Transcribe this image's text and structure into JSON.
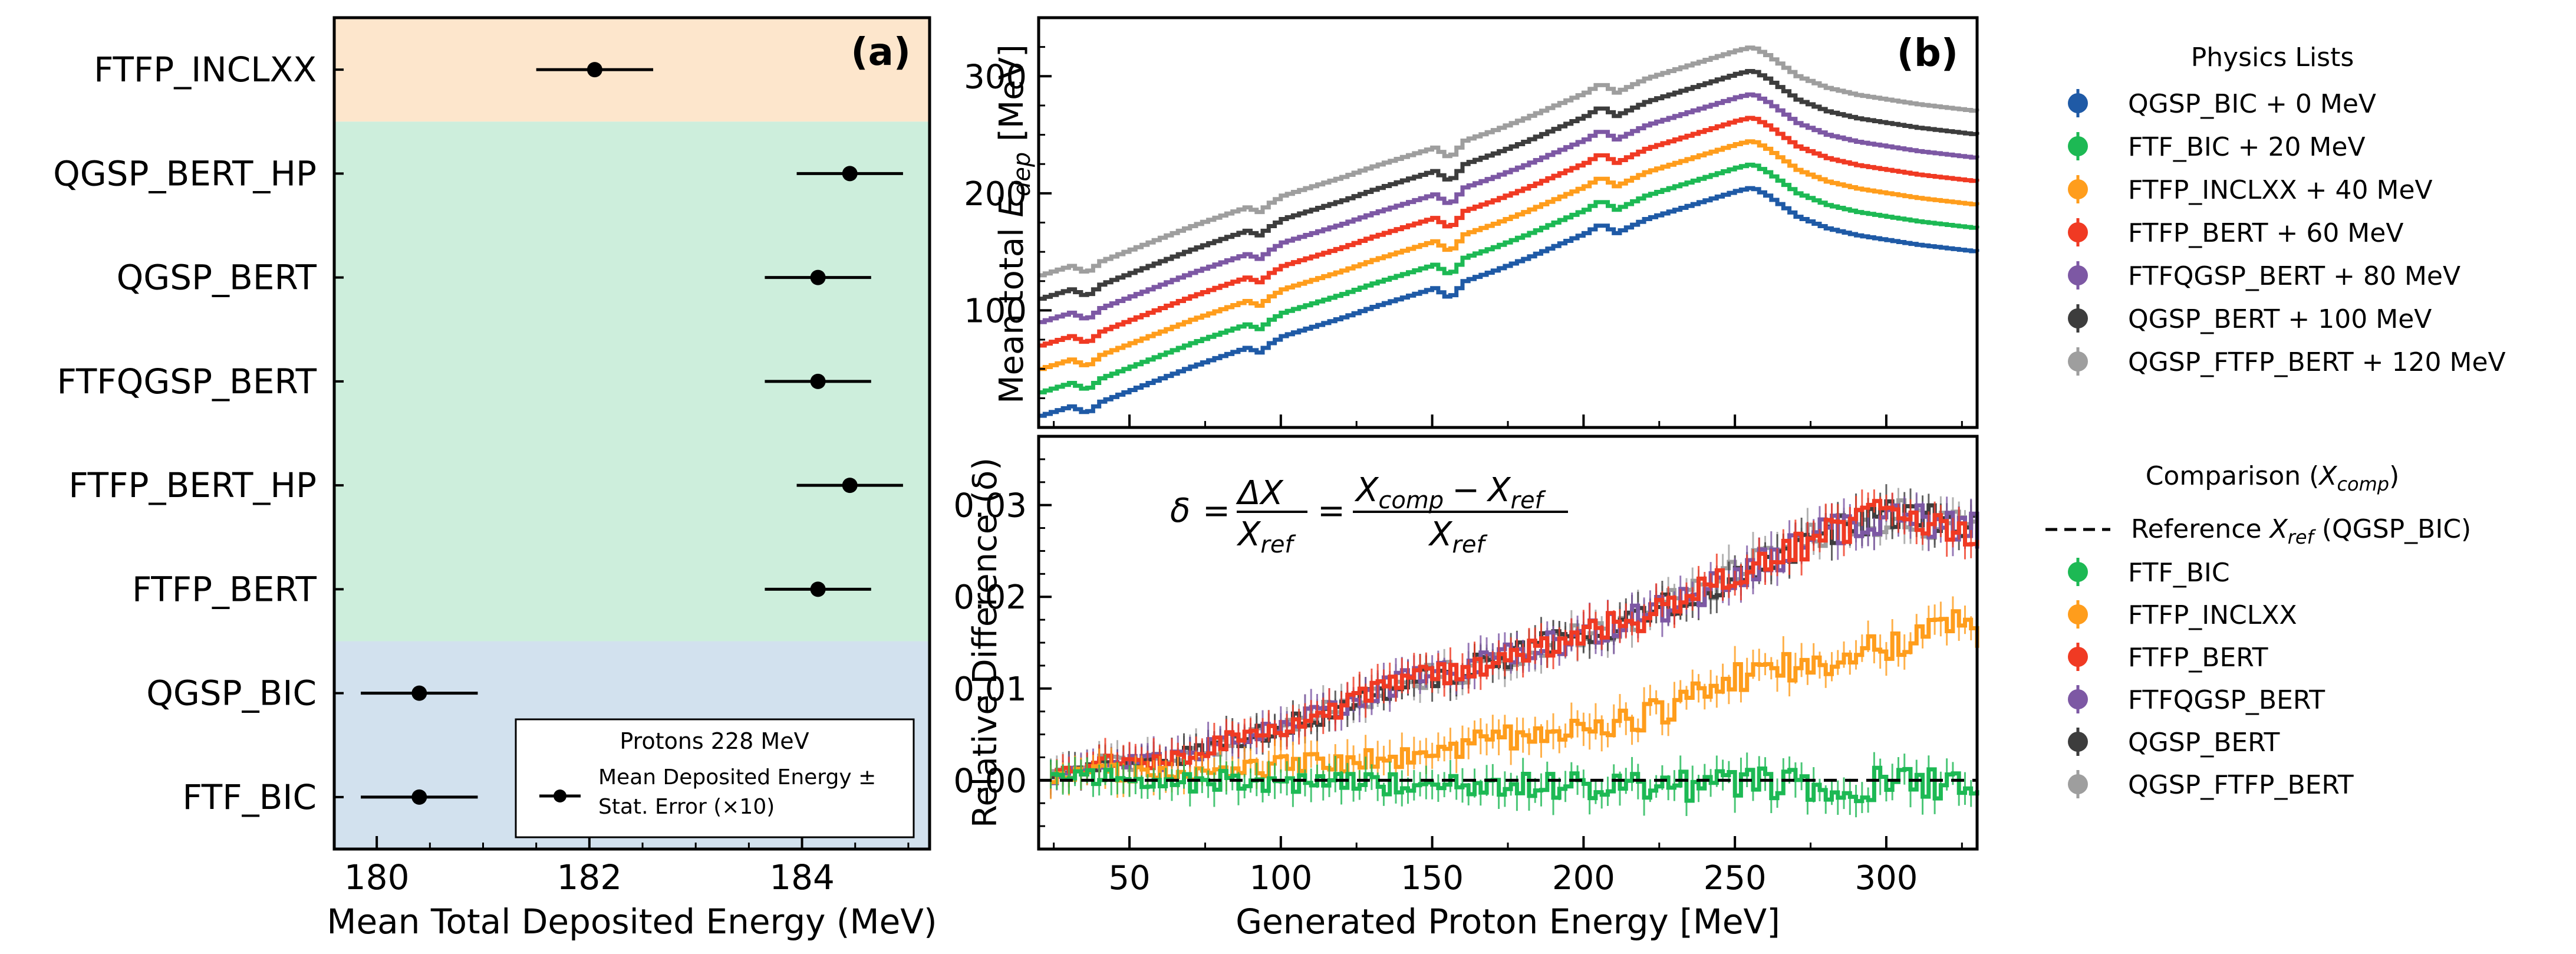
{
  "chart_data": [
    {
      "type": "scatter",
      "panel": "(a)",
      "subtype": "horizontal errorbar",
      "xlabel": "Mean Total Deposited Energy (MeV)",
      "xlim": [
        179.6,
        185.2
      ],
      "xticks": [
        "180",
        "182",
        "184"
      ],
      "categories": [
        "FTFP_INCLXX",
        "QGSP_BERT_HP",
        "QGSP_BERT",
        "FTFQGSP_BERT",
        "FTFP_BERT_HP",
        "FTFP_BERT",
        "QGSP_BIC",
        "FTF_BIC"
      ],
      "values": [
        182.05,
        184.45,
        184.15,
        184.15,
        184.45,
        184.15,
        180.4,
        180.4
      ],
      "errors_x10": [
        0.55,
        0.5,
        0.5,
        0.5,
        0.5,
        0.5,
        0.55,
        0.55
      ],
      "bands": [
        {
          "categories": [
            "FTFP_INCLXX"
          ],
          "color": "#fde6cc"
        },
        {
          "categories": [
            "QGSP_BERT_HP",
            "QGSP_BERT",
            "FTFQGSP_BERT",
            "FTFP_BERT_HP",
            "FTFP_BERT"
          ],
          "color": "#cdeedc"
        },
        {
          "categories": [
            "QGSP_BIC",
            "FTF_BIC"
          ],
          "color": "#d2e1ee"
        }
      ],
      "legend": {
        "title": "Protons 228 MeV",
        "entry_line1": "Mean Deposited Energy ±",
        "entry_line2": "Stat. Error (×10)",
        "placement": "lower-right"
      }
    },
    {
      "type": "line",
      "panel": "(b)",
      "ylabel": "Mean total E_dep [MeV]",
      "ylabel_main": "Mean total ",
      "ylabel_E": "E",
      "ylabel_sub": "dep",
      "ylabel_unit": " [MeV]",
      "xlim": [
        20,
        330
      ],
      "ylim": [
        0,
        350
      ],
      "yticks": [
        "100",
        "200",
        "300"
      ],
      "base_curve": {
        "x": [
          20,
          30,
          35,
          40,
          50,
          60,
          70,
          80,
          88,
          92,
          96,
          100,
          110,
          120,
          130,
          140,
          150,
          155,
          160,
          170,
          180,
          190,
          200,
          205,
          210,
          220,
          230,
          240,
          250,
          255,
          260,
          270,
          280,
          290,
          300,
          310,
          320,
          330
        ],
        "y": [
          10,
          18,
          12,
          22,
          32,
          42,
          52,
          61,
          68,
          64,
          72,
          78,
          86,
          94,
          103,
          111,
          119,
          110,
          125,
          134,
          144,
          155,
          166,
          174,
          166,
          178,
          186,
          194,
          202,
          205,
          198,
          180,
          170,
          164,
          160,
          156,
          153,
          150
        ]
      },
      "series": [
        {
          "name": "QGSP_BIC",
          "offset": 0,
          "legend": "QGSP_BIC + 0 MeV",
          "color": "#1f5aa6"
        },
        {
          "name": "FTF_BIC",
          "offset": 20,
          "legend": "FTF_BIC + 20 MeV",
          "color": "#1db954"
        },
        {
          "name": "FTFP_INCLXX",
          "offset": 40,
          "legend": "FTFP_INCLXX + 40 MeV",
          "color": "#ff9d1c"
        },
        {
          "name": "FTFP_BERT",
          "offset": 60,
          "legend": "FTFP_BERT + 60 MeV",
          "color": "#f03a23"
        },
        {
          "name": "FTFQGSP_BERT",
          "offset": 80,
          "legend": "FTFQGSP_BERT + 80 MeV",
          "color": "#7d58a4"
        },
        {
          "name": "QGSP_BERT",
          "offset": 100,
          "legend": "QGSP_BERT + 100 MeV",
          "color": "#3d3d3d"
        },
        {
          "name": "QGSP_FTFP_BERT",
          "offset": 120,
          "legend": "QGSP_FTFP_BERT + 120 MeV",
          "color": "#9e9e9e"
        }
      ],
      "legend_title": "Physics Lists"
    },
    {
      "type": "line",
      "panel": "(b) lower",
      "xlabel": "Generated Proton Energy [MeV]",
      "ylabel": "Relative Difference (δ)",
      "xlim": [
        20,
        330
      ],
      "ylim": [
        -0.0075,
        0.0375
      ],
      "xticks": [
        "50",
        "100",
        "150",
        "200",
        "250",
        "300"
      ],
      "yticks": [
        "0.00",
        "0.01",
        "0.02",
        "0.03"
      ],
      "formula": "δ = ΔX / X_ref = (X_comp − X_ref) / X_ref",
      "formula_parts": {
        "delta": "δ",
        "eq": "=",
        "dx": "ΔX",
        "x": "X",
        "ref": "ref",
        "comp": "comp",
        "minus": "−"
      },
      "reference": {
        "legend_main": "Reference ",
        "legend_x": "X",
        "legend_sub": "ref",
        "legend_tail": " (QGSP_BIC)",
        "value": 0
      },
      "legend_title_main": "Comparison (",
      "legend_title_x": "X",
      "legend_title_sub": "comp",
      "legend_title_tail": ")",
      "series": [
        {
          "name": "FTF_BIC",
          "color": "#1db954",
          "x": [
            20,
            40,
            60,
            80,
            100,
            120,
            140,
            160,
            180,
            200,
            220,
            240,
            260,
            280,
            300,
            320,
            330
          ],
          "y": [
            0.0,
            0.0005,
            -0.0005,
            0.0,
            -0.0003,
            0.0,
            -0.0005,
            -0.0008,
            -0.0003,
            -0.0008,
            -0.0004,
            -0.0007,
            -0.0003,
            -0.0005,
            -0.0004,
            -0.0003,
            -0.0005
          ]
        },
        {
          "name": "FTFP_INCLXX",
          "color": "#ff9d1c",
          "x": [
            20,
            40,
            60,
            80,
            100,
            120,
            140,
            160,
            180,
            200,
            220,
            240,
            260,
            280,
            300,
            320,
            330
          ],
          "y": [
            0.0,
            0.001,
            0.0005,
            0.001,
            0.0015,
            0.002,
            0.0025,
            0.004,
            0.005,
            0.006,
            0.007,
            0.01,
            0.012,
            0.013,
            0.015,
            0.017,
            0.016
          ]
        },
        {
          "name": "FTFP_BERT",
          "color": "#f03a23",
          "x": [
            20,
            40,
            60,
            80,
            100,
            120,
            140,
            160,
            180,
            200,
            220,
            240,
            260,
            280,
            300,
            320,
            330
          ],
          "y": [
            0.0,
            0.002,
            0.002,
            0.004,
            0.006,
            0.008,
            0.011,
            0.012,
            0.014,
            0.016,
            0.018,
            0.021,
            0.024,
            0.027,
            0.029,
            0.028,
            0.027
          ]
        },
        {
          "name": "FTFQGSP_BERT",
          "color": "#7d58a4",
          "x": [
            20,
            40,
            60,
            80,
            100,
            120,
            140,
            160,
            180,
            200,
            220,
            240,
            260,
            280,
            300,
            320,
            330
          ],
          "y": [
            0.0,
            0.002,
            0.002,
            0.004,
            0.006,
            0.008,
            0.011,
            0.012,
            0.014,
            0.016,
            0.018,
            0.021,
            0.024,
            0.027,
            0.029,
            0.028,
            0.027
          ]
        },
        {
          "name": "QGSP_BERT",
          "color": "#3d3d3d",
          "x": [
            20,
            40,
            60,
            80,
            100,
            120,
            140,
            160,
            180,
            200,
            220,
            240,
            260,
            280,
            300,
            320,
            330
          ],
          "y": [
            0.0,
            0.002,
            0.002,
            0.004,
            0.006,
            0.008,
            0.011,
            0.012,
            0.014,
            0.016,
            0.018,
            0.021,
            0.024,
            0.027,
            0.029,
            0.028,
            0.027
          ]
        },
        {
          "name": "QGSP_FTFP_BERT",
          "color": "#9e9e9e",
          "x": [
            20,
            40,
            60,
            80,
            100,
            120,
            140,
            160,
            180,
            200,
            220,
            240,
            260,
            280,
            300,
            320,
            330
          ],
          "y": [
            0.0,
            0.002,
            0.002,
            0.004,
            0.006,
            0.008,
            0.011,
            0.012,
            0.014,
            0.016,
            0.018,
            0.021,
            0.024,
            0.027,
            0.029,
            0.028,
            0.027
          ]
        }
      ]
    }
  ]
}
